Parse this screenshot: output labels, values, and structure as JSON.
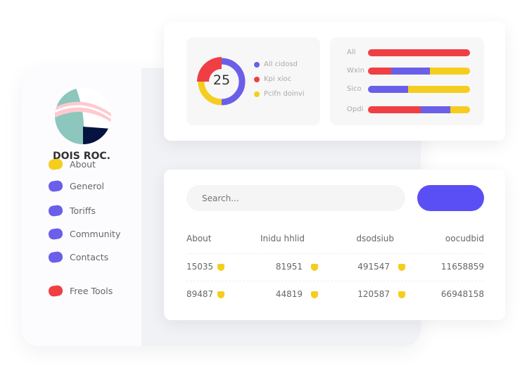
{
  "sidebar": {
    "brand": "DOIS ROC.",
    "items": [
      {
        "label": "About",
        "color": "#f5cd1f"
      },
      {
        "label": "Generol",
        "color": "#6a5fe8"
      },
      {
        "label": "Toriffs",
        "color": "#6a5fe8"
      },
      {
        "label": "Community",
        "color": "#6a5fe8"
      },
      {
        "label": "Contacts",
        "color": "#6a5fe8"
      },
      {
        "label": "Free Tools",
        "color": "#ef3f45"
      }
    ]
  },
  "donut": {
    "value": "25",
    "segments": [
      {
        "label": "All cidosd",
        "color": "#6a5fe8",
        "fraction": 0.5
      },
      {
        "label": "Kpi xioc",
        "color": "#ef3f45",
        "fraction": 0.25
      },
      {
        "label": "Pcifn doinvi",
        "color": "#f5cd1f",
        "fraction": 0.25
      }
    ]
  },
  "bars": [
    {
      "label": "All",
      "segments": [
        {
          "color": "#ef3f45",
          "fraction": 1
        }
      ]
    },
    {
      "label": "Wxin",
      "segments": [
        {
          "color": "#ef3f45",
          "fraction": 0.23
        },
        {
          "color": "#6a5fe8",
          "fraction": 0.38
        },
        {
          "color": "#f5cd1f",
          "fraction": 0.39
        }
      ]
    },
    {
      "label": "Sico",
      "segments": [
        {
          "color": "#6a5fe8",
          "fraction": 0.39
        },
        {
          "color": "#f5cd1f",
          "fraction": 0.61
        }
      ]
    },
    {
      "label": "Opdi",
      "segments": [
        {
          "color": "#ef3f45",
          "fraction": 0.52
        },
        {
          "color": "#6a5fe8",
          "fraction": 0.29
        },
        {
          "color": "#f5cd1f",
          "fraction": 0.19
        }
      ]
    }
  ],
  "table": {
    "search_placeholder": "Search...",
    "headers": [
      "About",
      "Inidu hhlid",
      "dsodsiub",
      "oocudbid"
    ],
    "rows": [
      [
        "15035",
        "81951",
        "491547",
        "11658859"
      ],
      [
        "89487",
        "44819",
        "120587",
        "66948158"
      ]
    ]
  }
}
